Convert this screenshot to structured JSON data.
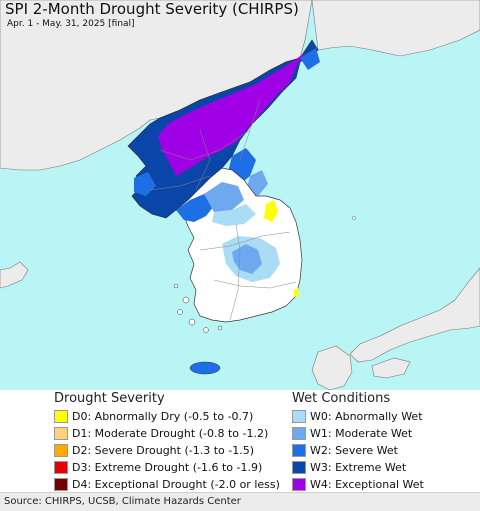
{
  "title": "SPI 2-Month Drought Severity (CHIRPS)",
  "subtitle": "Apr. 1 - May. 31, 2025 [final]",
  "legend": {
    "drought_heading": "Drought Severity",
    "wet_heading": "Wet Conditions",
    "drought_items": [
      {
        "label": "D0: Abnormally Dry (-0.5 to -0.7)",
        "color": "#ffff00"
      },
      {
        "label": "D1: Moderate Drought (-0.8 to -1.2)",
        "color": "#fcd37f"
      },
      {
        "label": "D2: Severe Drought (-1.3 to -1.5)",
        "color": "#ffaa00"
      },
      {
        "label": "D3: Extreme Drought (-1.6 to -1.9)",
        "color": "#e60000"
      },
      {
        "label": "D4: Exceptional Drought (-2.0 or less)",
        "color": "#730000"
      }
    ],
    "wet_items": [
      {
        "label": "W0: Abnormally Wet",
        "color": "#aadcf5"
      },
      {
        "label": "W1: Moderate Wet",
        "color": "#6ea8ef"
      },
      {
        "label": "W2: Severe Wet",
        "color": "#1e6ee6"
      },
      {
        "label": "W3: Extreme Wet",
        "color": "#0a46aa"
      },
      {
        "label": "W4: Exceptional Wet",
        "color": "#a000e6"
      }
    ]
  },
  "source": "Source: CHIRPS, UCSB, Climate Hazards Center",
  "colors": {
    "sea": "#b9f5f5",
    "land_outside": "#ececec",
    "land_normal": "#ffffff",
    "border": "#555555"
  }
}
